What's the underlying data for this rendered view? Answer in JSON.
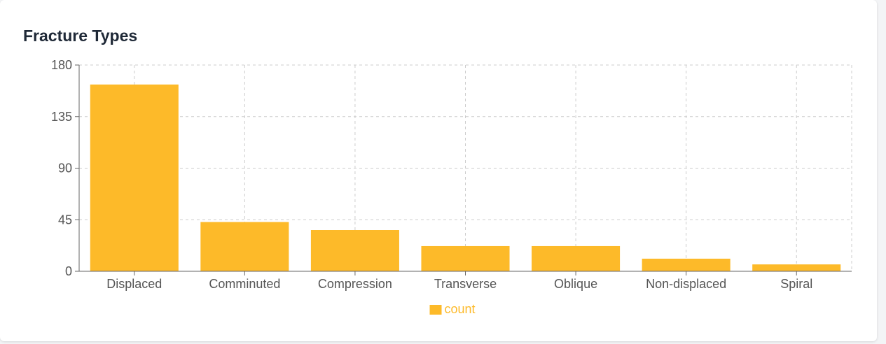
{
  "card": {
    "title": "Fracture Types"
  },
  "colors": {
    "bar": "#fdba29",
    "grid": "#cccccc",
    "axis": "#666666",
    "tick_text": "#555555"
  },
  "chart_data": {
    "type": "bar",
    "title": "Fracture Types",
    "categories": [
      "Displaced",
      "Comminuted",
      "Compression",
      "Transverse",
      "Oblique",
      "Non-displaced",
      "Spiral"
    ],
    "series": [
      {
        "name": "count",
        "values": [
          163,
          43,
          36,
          22,
          22,
          11,
          6
        ]
      }
    ],
    "y_ticks": [
      0,
      45,
      90,
      135,
      180
    ],
    "ylim": [
      0,
      180
    ],
    "xlabel": "",
    "ylabel": "",
    "grid": true,
    "legend_position": "bottom-center"
  }
}
